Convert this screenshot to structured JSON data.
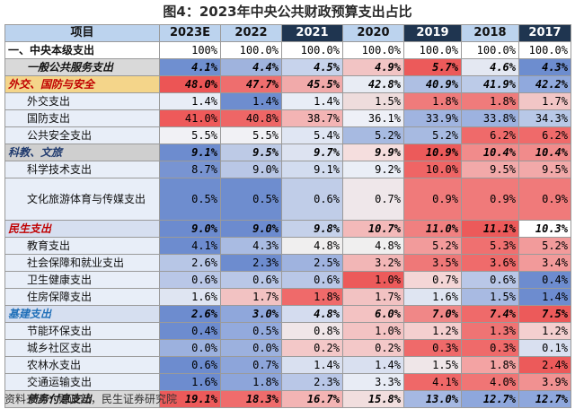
{
  "title": "图4：2023年中央公共财政预算支出占比",
  "source": "资料来源：财政部，民生证券研究院",
  "header": [
    "项目",
    "2023E",
    "2022",
    "2021",
    "2020",
    "2019",
    "2018",
    "2017"
  ],
  "rows": [
    {
      "label": "一、中央本级支出",
      "type": "total",
      "values": [
        "100%",
        "100.0%",
        "100.0%",
        "100.0%",
        "100.0%",
        "100.0%",
        "100.0%"
      ]
    },
    {
      "label": "一般公共服务支出",
      "type": "cat",
      "values": [
        "4.1%",
        "4.4%",
        "4.5%",
        "4.9%",
        "5.7%",
        "4.6%",
        "4.3%"
      ]
    },
    {
      "label": "外交、国防与安全",
      "type": "group",
      "values": [
        "48.0%",
        "47.7%",
        "45.5%",
        "42.8%",
        "40.9%",
        "41.9%",
        "42.2%"
      ]
    },
    {
      "label": "外交支出",
      "type": "sub",
      "values": [
        "1.4%",
        "1.4%",
        "1.4%",
        "1.5%",
        "1.8%",
        "1.8%",
        "1.7%"
      ]
    },
    {
      "label": "国防支出",
      "type": "sub",
      "values": [
        "41.0%",
        "40.8%",
        "38.7%",
        "36.1%",
        "33.9%",
        "33.8%",
        "34.3%"
      ]
    },
    {
      "label": "公共安全支出",
      "type": "sub",
      "values": [
        "5.5%",
        "5.5%",
        "5.4%",
        "5.2%",
        "5.2%",
        "6.2%",
        "6.2%"
      ]
    },
    {
      "label": "科教、文旅",
      "type": "group",
      "values": [
        "9.1%",
        "9.5%",
        "9.7%",
        "9.9%",
        "10.9%",
        "10.4%",
        "10.4%"
      ]
    },
    {
      "label": "科学技术支出",
      "type": "sub",
      "values": [
        "8.7%",
        "9.0%",
        "9.1%",
        "9.2%",
        "10.0%",
        "9.5%",
        "9.5%"
      ]
    },
    {
      "label": "文化旅游体育与传媒支出",
      "type": "sub",
      "tall": true,
      "values": [
        "0.5%",
        "0.5%",
        "0.6%",
        "0.7%",
        "0.9%",
        "0.9%",
        "0.9%"
      ]
    },
    {
      "label": "民生支出",
      "type": "group",
      "values": [
        "9.0%",
        "9.0%",
        "9.8%",
        "10.7%",
        "11.0%",
        "11.1%",
        "10.3%"
      ]
    },
    {
      "label": "教育支出",
      "type": "sub",
      "values": [
        "4.1%",
        "4.3%",
        "4.8%",
        "4.8%",
        "5.2%",
        "5.3%",
        "5.2%"
      ]
    },
    {
      "label": "社会保障和就业支出",
      "type": "sub",
      "values": [
        "2.6%",
        "2.3%",
        "2.5%",
        "3.2%",
        "3.5%",
        "3.6%",
        "3.4%"
      ]
    },
    {
      "label": "卫生健康支出",
      "type": "sub",
      "values": [
        "0.6%",
        "0.6%",
        "0.6%",
        "1.0%",
        "0.7%",
        "0.6%",
        "0.4%"
      ]
    },
    {
      "label": "住房保障支出",
      "type": "sub",
      "values": [
        "1.6%",
        "1.7%",
        "1.8%",
        "1.7%",
        "1.6%",
        "1.5%",
        "1.4%"
      ]
    },
    {
      "label": "基建支出",
      "type": "group",
      "values": [
        "2.6%",
        "3.0%",
        "4.8%",
        "6.0%",
        "7.0%",
        "7.4%",
        "7.5%"
      ]
    },
    {
      "label": "节能环保支出",
      "type": "sub",
      "values": [
        "0.4%",
        "0.5%",
        "0.8%",
        "1.0%",
        "1.2%",
        "1.3%",
        "1.2%"
      ]
    },
    {
      "label": "城乡社区支出",
      "type": "sub",
      "values": [
        "0.0%",
        "0.0%",
        "0.2%",
        "0.2%",
        "0.3%",
        "0.3%",
        "0.1%"
      ]
    },
    {
      "label": "农林水支出",
      "type": "sub",
      "values": [
        "0.6%",
        "0.7%",
        "1.4%",
        "1.4%",
        "1.5%",
        "1.8%",
        "2.4%"
      ]
    },
    {
      "label": "交通运输支出",
      "type": "sub",
      "values": [
        "1.6%",
        "1.8%",
        "2.3%",
        "3.3%",
        "4.1%",
        "4.0%",
        "3.9%"
      ]
    },
    {
      "label": "债务付息支出",
      "type": "cat",
      "values": [
        "19.1%",
        "18.3%",
        "16.7%",
        "15.8%",
        "13.0%",
        "12.7%",
        "12.7%"
      ]
    }
  ],
  "styles": {
    "label_bg": {
      "total": "#ffffff",
      "cat": "#d9d9d9",
      "group": "#d9d9d9",
      "sub": "#e8eef8"
    },
    "group_label_colors": {
      "外交、国防与安全": "#f4d58a",
      "科教、文旅": "#cfcfcf",
      "民生支出": "#d6dff0",
      "基建支出": "#d6dff0"
    },
    "group_text_colors": {
      "外交、国防与安全": "#c00000",
      "科教、文旅": "#1f3a6e",
      "民生支出": "#c00000",
      "基建支出": "#1f6fb8"
    },
    "cell_colors": [
      [
        "#ffffff",
        "#ffffff",
        "#ffffff",
        "#ffffff",
        "#ffffff",
        "#ffffff",
        "#ffffff"
      ],
      [
        "#6f8fd0",
        "#9fb3dd",
        "#c7d3ec",
        "#f2c4c4",
        "#ec5a5a",
        "#e4e8f2",
        "#6d8dcf"
      ],
      [
        "#ec5555",
        "#ee6e6e",
        "#f1aaaa",
        "#e8ecf4",
        "#aebfe3",
        "#bccbe8",
        "#90a9dd"
      ],
      [
        "#e8edf6",
        "#6e8dcf",
        "#e8edf6",
        "#eedcdc",
        "#ef7b7b",
        "#ef7b7b",
        "#f2c6c6"
      ],
      [
        "#ee5a5a",
        "#ee6666",
        "#f3b4b4",
        "#eef0f7",
        "#a0b4e0",
        "#9db2df",
        "#b8c8e7"
      ],
      [
        "#f1f1f5",
        "#f1f1f5",
        "#e0e6f3",
        "#a7bae1",
        "#a7bae1",
        "#ef6a6a",
        "#ef6a6a"
      ],
      [
        "#6d8ccf",
        "#bdcae6",
        "#dde3f1",
        "#f5dede",
        "#ec5a5a",
        "#f18b8b",
        "#f18b8b"
      ],
      [
        "#7894d2",
        "#b9c7e6",
        "#d2dcef",
        "#eaeef6",
        "#ef6565",
        "#f2a9a9",
        "#f2a9a9"
      ],
      [
        "#6e8dcf",
        "#6e8dcf",
        "#c0cde8",
        "#efe7ea",
        "#f07a7a",
        "#f07a7a",
        "#f07a7a"
      ],
      [
        "#6c8bcf",
        "#6c8bcf",
        "#c5d1ea",
        "#f3b9b9",
        "#f08080",
        "#ec5a5a",
        "#ffffff"
      ],
      [
        "#6d8ccf",
        "#a9bbe2",
        "#f0efef",
        "#f0efef",
        "#f29b9b",
        "#ef7070",
        "#f29b9b"
      ],
      [
        "#b7c6e6",
        "#6d8ccf",
        "#9fb3df",
        "#f2b6b6",
        "#ef7878",
        "#ef6b6b",
        "#f29a9a"
      ],
      [
        "#b9c7e7",
        "#b9c7e7",
        "#b9c7e7",
        "#ec5a5a",
        "#f4d6d6",
        "#b9c7e7",
        "#6d8ccf"
      ],
      [
        "#dfe5f2",
        "#f2c2c2",
        "#ef6a6a",
        "#f2c2c2",
        "#dfe5f2",
        "#a8bae2",
        "#6d8ccf"
      ],
      [
        "#6d8ccf",
        "#8fa7db",
        "#d4dcef",
        "#f3c2c2",
        "#f08787",
        "#ef6a6a",
        "#ec5a5a"
      ],
      [
        "#6d8ccf",
        "#93aadd",
        "#f0e6e8",
        "#f3c3c3",
        "#f4cfcf",
        "#ef7474",
        "#f4cfcf"
      ],
      [
        "#9cb1de",
        "#9cb1de",
        "#f3c8c8",
        "#f3c8c8",
        "#ef6a6a",
        "#ef6a6a",
        "#d9e0f0"
      ],
      [
        "#6d8ccf",
        "#8da5da",
        "#d9e0f0",
        "#d9e0f0",
        "#efe6e8",
        "#f3a3a3",
        "#ec5a5a"
      ],
      [
        "#6d8ccf",
        "#8da5da",
        "#b9c7e7",
        "#e8ecf5",
        "#ef6868",
        "#f07575",
        "#f19191"
      ],
      [
        "#ec5a5a",
        "#ef6c6c",
        "#f3b4b4",
        "#f1dede",
        "#a5b8e2",
        "#8ea7dc",
        "#8ea7dc"
      ]
    ]
  }
}
